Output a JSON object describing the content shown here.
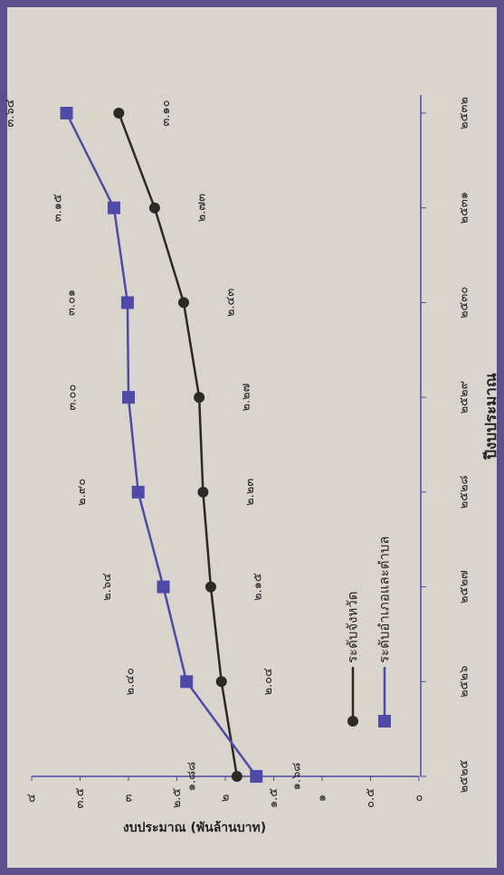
{
  "chart_data": {
    "type": "line",
    "x_label": "ปีงบประมาณ",
    "y_label": "งบประมาณ (พันล้านบาท)",
    "categories": [
      "๒๕๒๕",
      "๒๕๒๖",
      "๒๕๒๗",
      "๒๕๒๘",
      "๒๕๒๙",
      "๒๕๓๐",
      "๒๕๓๑",
      "๒๕๓๒"
    ],
    "series": [
      {
        "name": "ระดับจังหวัด",
        "color": "#2b2a24",
        "marker": "circle",
        "values": [
          1.88,
          2.04,
          2.15,
          2.23,
          2.27,
          2.43,
          2.73,
          3.1
        ],
        "value_labels": [
          "๑.๘๘",
          "๒.๐๔",
          "๒.๑๕",
          "๒.๒๓",
          "๒.๒๗",
          "๒.๔๓",
          "๒.๗๓",
          "๓.๑๐"
        ]
      },
      {
        "name": "ระดับอำเภอและตำบล",
        "color": "#4f4aa8",
        "marker": "square",
        "values": [
          1.68,
          2.4,
          2.64,
          2.9,
          3.0,
          3.01,
          3.15,
          3.64
        ],
        "value_labels": [
          "๑.๖๘",
          "๒.๔๐",
          "๒.๖๔",
          "๒.๙๐",
          "๓.๐๐",
          "๓.๐๑",
          "๓.๑๕",
          "๓.๖๔"
        ]
      }
    ],
    "ylim": [
      0,
      4
    ],
    "yticks": [
      {
        "value": 0,
        "label": "๐"
      },
      {
        "value": 0.5,
        "label": "๐.๕"
      },
      {
        "value": 1,
        "label": "๑"
      },
      {
        "value": 1.5,
        "label": "๑.๕"
      },
      {
        "value": 2,
        "label": "๒"
      },
      {
        "value": 2.5,
        "label": "๒.๕"
      },
      {
        "value": 3,
        "label": "๓"
      },
      {
        "value": 3.5,
        "label": "๓.๕"
      },
      {
        "value": 4,
        "label": "๔"
      }
    ]
  }
}
